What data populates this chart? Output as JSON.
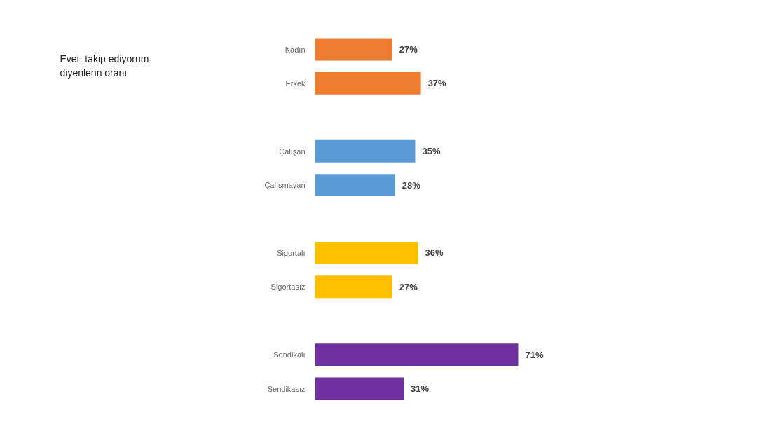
{
  "chart_data": {
    "type": "bar",
    "orientation": "horizontal",
    "title": "Evet, takip ediyorum\ndiyenlerin oranı",
    "categories": [
      "Kadın",
      "Erkek",
      null,
      "Çalışan",
      "Çalışmayan",
      null,
      "Sigortalı",
      "Sigortasız",
      null,
      "Sendikalı",
      "Sendikasız"
    ],
    "values": [
      27,
      37,
      null,
      35,
      28,
      null,
      36,
      27,
      null,
      71,
      31
    ],
    "colors": [
      "#ed7d31",
      "#ed7d31",
      null,
      "#5b9bd5",
      "#5b9bd5",
      null,
      "#ffc000",
      "#ffc000",
      null,
      "#7030a0",
      "#7030a0"
    ],
    "value_labels": [
      "27%",
      "37%",
      null,
      "35%",
      "28%",
      null,
      "36%",
      "27%",
      null,
      "71%",
      "31%"
    ],
    "grid": false
  }
}
